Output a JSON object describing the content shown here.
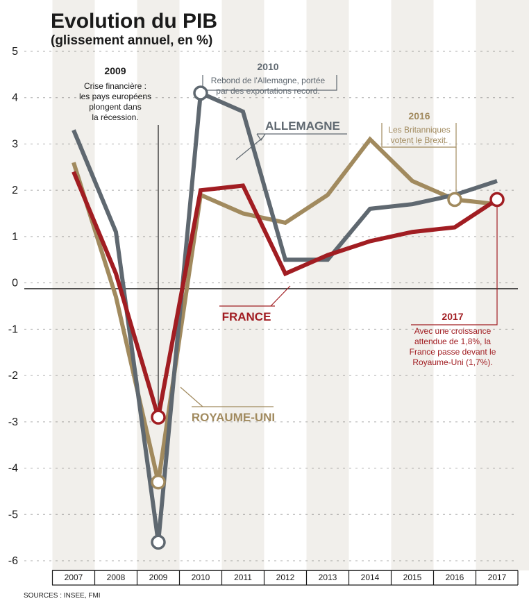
{
  "chart_data": {
    "type": "line",
    "title": "Evolution du PIB",
    "subtitle": "(glissement annuel, en %)",
    "categories": [
      "2007",
      "2008",
      "2009",
      "2010",
      "2011",
      "2012",
      "2013",
      "2014",
      "2015",
      "2016",
      "2017"
    ],
    "ylim": [
      -6,
      5
    ],
    "yticks": [
      "5",
      "4",
      "3",
      "2",
      "1",
      "0",
      "-1",
      "-2",
      "-3",
      "-4",
      "-5",
      "-6"
    ],
    "grid": "alternating vertical bands",
    "series": [
      {
        "name": "ALLEMAGNE",
        "color": "#5f6870",
        "values": [
          3.3,
          1.1,
          -5.6,
          4.1,
          3.7,
          0.5,
          0.5,
          1.6,
          1.7,
          1.9,
          2.2
        ]
      },
      {
        "name": "ROYAUME-UNI",
        "color": "#a18a5e",
        "values": [
          2.6,
          -0.3,
          -4.3,
          1.9,
          1.5,
          1.3,
          1.9,
          3.1,
          2.2,
          1.8,
          1.7
        ]
      },
      {
        "name": "FRANCE",
        "color": "#a11d22",
        "values": [
          2.4,
          0.2,
          -2.9,
          2.0,
          2.1,
          0.2,
          0.6,
          0.9,
          1.1,
          1.2,
          1.8
        ]
      }
    ],
    "annotations": [
      {
        "year": "2009",
        "lines": [
          "Crise financière :",
          "les pays européens",
          "plongent dans",
          "la récession."
        ]
      },
      {
        "year": "2010",
        "lines": [
          "Rebond de l'Allemagne, portée",
          "par des exportations record."
        ]
      },
      {
        "year": "2016",
        "lines": [
          "Les Britanniques",
          "votent le Brexit."
        ]
      },
      {
        "year": "2017",
        "lines": [
          "Avec une croissance",
          "attendue de 1,8%, la",
          "France passe devant le",
          "Royaume-Uni (1,7%)."
        ]
      }
    ],
    "source": "SOURCES : INSEE, FMI"
  },
  "colors": {
    "band": "#f1efeb",
    "axis": "#1a1a1a",
    "text": "#1a1a1a",
    "france": "#a11d22",
    "allemagne": "#5f6870",
    "royaume_uni": "#a18a5e"
  }
}
